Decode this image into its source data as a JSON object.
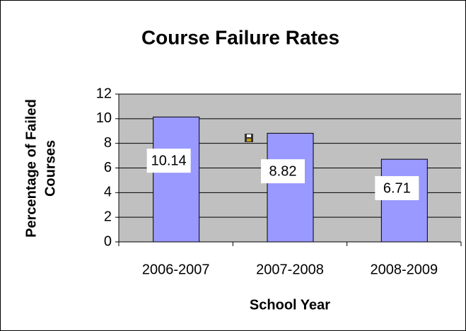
{
  "chart_data": {
    "type": "bar",
    "title": "Course Failure Rates",
    "xlabel": "School Year",
    "ylabel": [
      "Percentage of Failed",
      "Courses"
    ],
    "categories": [
      "2006-2007",
      "2007-2008",
      "2008-2009"
    ],
    "values": [
      10.14,
      8.82,
      6.71
    ],
    "color": "#9999ff",
    "ylim": [
      0,
      12
    ],
    "yticks": [
      0,
      2,
      4,
      6,
      8,
      10,
      12
    ],
    "grid": true
  }
}
